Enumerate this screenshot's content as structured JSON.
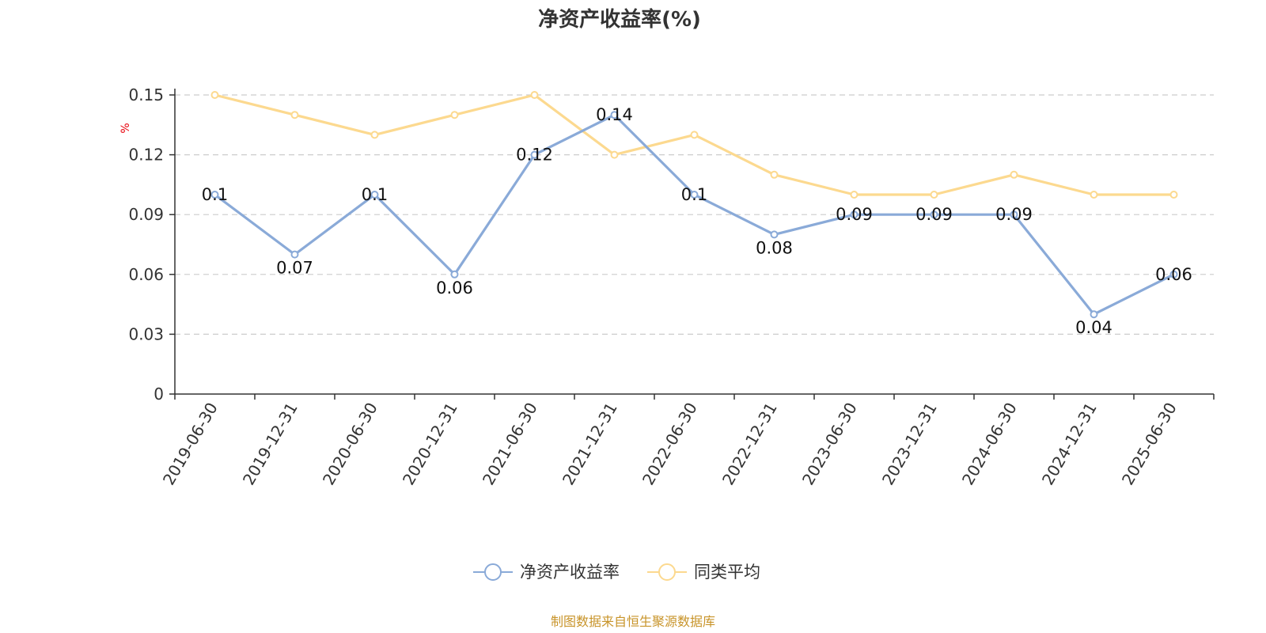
{
  "chart_data": {
    "type": "line",
    "title": "净资产收益率(%)",
    "ylabel": "%",
    "ylim": [
      0,
      0.15
    ],
    "yticks": [
      "0",
      "0.03",
      "0.06",
      "0.09",
      "0.12",
      "0.15"
    ],
    "ytick_values": [
      0,
      0.03,
      0.06,
      0.09,
      0.12,
      0.15
    ],
    "categories": [
      "2019-06-30",
      "2019-12-31",
      "2020-06-30",
      "2020-12-31",
      "2021-06-30",
      "2021-12-31",
      "2022-06-30",
      "2022-12-31",
      "2023-06-30",
      "2023-12-31",
      "2024-06-30",
      "2024-12-31",
      "2025-06-30"
    ],
    "series": [
      {
        "name": "净资产收益率",
        "values": [
          0.1,
          0.07,
          0.1,
          0.06,
          0.12,
          0.14,
          0.1,
          0.08,
          0.09,
          0.09,
          0.09,
          0.04,
          0.06
        ],
        "labels": [
          "0.1",
          "0.07",
          "0.1",
          "0.06",
          "0.12",
          "0.14",
          "0.1",
          "0.08",
          "0.09",
          "0.09",
          "0.09",
          "0.04",
          "0.06"
        ],
        "color": "#8aaad8"
      },
      {
        "name": "同类平均",
        "values": [
          0.15,
          0.14,
          0.13,
          0.14,
          0.15,
          0.12,
          0.13,
          0.11,
          0.1,
          0.1,
          0.11,
          0.1,
          0.1
        ],
        "color": "#fcd98f"
      }
    ],
    "grid": true,
    "legend_position": "bottom-center"
  },
  "source_note": "制图数据来自恒生聚源数据库",
  "colors": {
    "title": "#333333",
    "axis": "#333333",
    "grid": "#cccccc",
    "unit": "#e8000b",
    "source": "#c8942a"
  }
}
